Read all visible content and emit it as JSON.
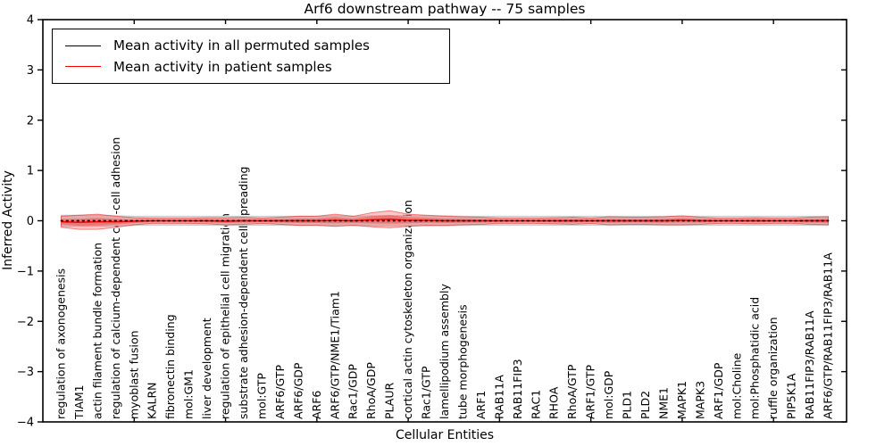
{
  "figure": {
    "title": "Arf6 downstream pathway -- 75 samples",
    "xlabel": "Cellular Entities",
    "ylabel": "Inferred Activity"
  },
  "legend": {
    "entries": [
      {
        "label": "Mean activity in all permuted samples",
        "color": "#000000"
      },
      {
        "label": "Mean activity in patient samples",
        "color": "#ff0000"
      }
    ]
  },
  "axes": {
    "ylim": [
      -4,
      4
    ],
    "yticks": [
      4,
      3,
      2,
      1,
      0,
      -1,
      -2,
      -3,
      -4
    ],
    "xlim": [
      0,
      44
    ],
    "xticks": [
      5,
      10,
      15,
      20,
      25,
      30,
      35,
      40
    ],
    "grid": false
  },
  "colors": {
    "permuted_band": "#dcdcdc",
    "permuted_band_edge": "#c9c9c9",
    "patient_band": "rgba(255,0,0,0.22)",
    "patient_band_inner": "rgba(255,0,0,0.30)",
    "patient_band_edge": "rgba(230,0,0,0.45)",
    "patient_line": "#ff0000",
    "permuted_line": "#000000"
  },
  "chart_data": {
    "type": "line",
    "title": "Arf6 downstream pathway -- 75 samples",
    "xlabel": "Cellular Entities",
    "ylabel": "Inferred Activity",
    "ylim": [
      -4,
      4
    ],
    "legend_position": "upper left",
    "categories": [
      "regulation of axonogenesis",
      "TIAM1",
      "actin filament bundle formation",
      "regulation of calcium-dependent cell-cell adhesion",
      "myoblast fusion",
      "KALRN",
      "fibronectin binding",
      "mol:GM1",
      "liver development",
      "regulation of epithelial cell migration",
      "substrate adhesion-dependent cell spreading",
      "mol:GTP",
      "ARF6/GTP",
      "ARF6/GDP",
      "ARF6",
      "ARF6/GTP/NME1/Tiam1",
      "Rac1/GDP",
      "RhoA/GDP",
      "PLAUR",
      "cortical actin cytoskeleton organization",
      "Rac1/GTP",
      "lamellipodium assembly",
      "tube morphogenesis",
      "ARF1",
      "RAB11A",
      "RAB11FIP3",
      "RAC1",
      "RHOA",
      "RhoA/GTP",
      "ARF1/GTP",
      "mol:GDP",
      "PLD1",
      "PLD2",
      "NME1",
      "MAPK1",
      "MAPK3",
      "ARF1/GDP",
      "mol:Choline",
      "mol:Phosphatidic acid",
      "ruffle organization",
      "PIP5K1A",
      "RAB11FIP3/RAB11A",
      "ARF6/GTP/RAB11FIP3/RAB11A"
    ],
    "series": [
      {
        "name": "Mean activity in all permuted samples",
        "style": "dotted-black",
        "mean": [
          0,
          0,
          0,
          0,
          0,
          0,
          0,
          0,
          0,
          0,
          0,
          0,
          0,
          0,
          0,
          0,
          0,
          0,
          0,
          0,
          0,
          0,
          0,
          0,
          0,
          0,
          0,
          0,
          0,
          0,
          0,
          0,
          0,
          0,
          0,
          0,
          0,
          0,
          0,
          0,
          0,
          0,
          0
        ],
        "std": [
          0.11,
          0.11,
          0.11,
          0.1,
          0.09,
          0.09,
          0.09,
          0.09,
          0.09,
          0.09,
          0.09,
          0.09,
          0.09,
          0.09,
          0.09,
          0.1,
          0.09,
          0.1,
          0.1,
          0.1,
          0.1,
          0.1,
          0.09,
          0.09,
          0.09,
          0.09,
          0.09,
          0.09,
          0.09,
          0.09,
          0.09,
          0.09,
          0.09,
          0.09,
          0.09,
          0.09,
          0.09,
          0.09,
          0.09,
          0.09,
          0.09,
          0.09,
          0.09
        ]
      },
      {
        "name": "Mean activity in patient samples",
        "style": "solid-red",
        "mean": [
          -0.02,
          -0.03,
          -0.02,
          -0.02,
          -0.01,
          0,
          0,
          0,
          0,
          -0.01,
          0,
          0,
          0,
          0,
          0,
          0.01,
          0,
          0.02,
          0.03,
          0.01,
          0.01,
          0,
          0,
          0,
          0,
          0,
          0,
          0,
          0,
          0,
          0,
          0,
          0,
          0,
          0.01,
          0,
          0,
          0,
          0,
          0,
          0,
          0,
          0
        ],
        "std": [
          0.11,
          0.14,
          0.15,
          0.11,
          0.07,
          0.05,
          0.05,
          0.05,
          0.06,
          0.07,
          0.07,
          0.05,
          0.07,
          0.09,
          0.09,
          0.12,
          0.09,
          0.14,
          0.17,
          0.12,
          0.1,
          0.09,
          0.08,
          0.07,
          0.05,
          0.05,
          0.05,
          0.06,
          0.07,
          0.05,
          0.08,
          0.07,
          0.07,
          0.08,
          0.09,
          0.07,
          0.05,
          0.05,
          0.06,
          0.05,
          0.05,
          0.07,
          0.08
        ]
      }
    ]
  }
}
